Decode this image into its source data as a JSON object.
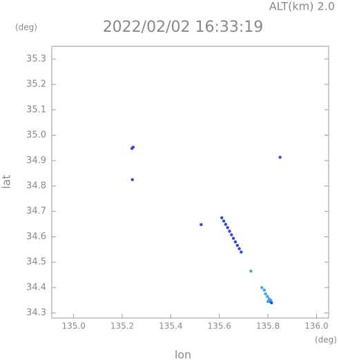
{
  "chart_data": {
    "type": "scatter",
    "title": "2022/02/02 16:33:19",
    "subtitle": "ALT(km) 2.0",
    "x_label": "lon",
    "y_label": "lat",
    "x_unit": "(deg)",
    "y_unit": "(deg)",
    "xlim": [
      134.91,
      136.05
    ],
    "ylim": [
      34.28,
      35.35
    ],
    "xticks": [
      {
        "value": 135,
        "label": "135.0"
      },
      135.2,
      135.4,
      135.6,
      135.8,
      {
        "value": 136,
        "label": "136.0"
      }
    ],
    "yticks": [
      34.3,
      34.4,
      34.5,
      34.6,
      34.7,
      34.8,
      34.9,
      {
        "value": 35,
        "label": "35.0"
      },
      35.1,
      35.2,
      35.3
    ],
    "series": [
      {
        "color": "#3046e0",
        "x": [
          135.24,
          135.245,
          135.242,
          135.525,
          135.85,
          135.61,
          135.618,
          135.626,
          135.634,
          135.642,
          135.65,
          135.658,
          135.666,
          135.674,
          135.682,
          135.69,
          135.81,
          135.815
        ],
        "y": [
          34.948,
          34.953,
          34.825,
          34.648,
          34.913,
          34.675,
          34.662,
          34.649,
          34.636,
          34.622,
          34.608,
          34.594,
          34.58,
          34.566,
          34.553,
          34.54,
          34.345,
          34.34
        ]
      },
      {
        "color": "#35a6f2",
        "x": [
          135.73,
          135.775,
          135.785,
          135.79,
          135.798,
          135.805,
          135.8,
          135.812
        ],
        "y": [
          34.465,
          34.4,
          34.39,
          34.375,
          34.365,
          34.355,
          34.345,
          34.35
        ]
      }
    ]
  }
}
